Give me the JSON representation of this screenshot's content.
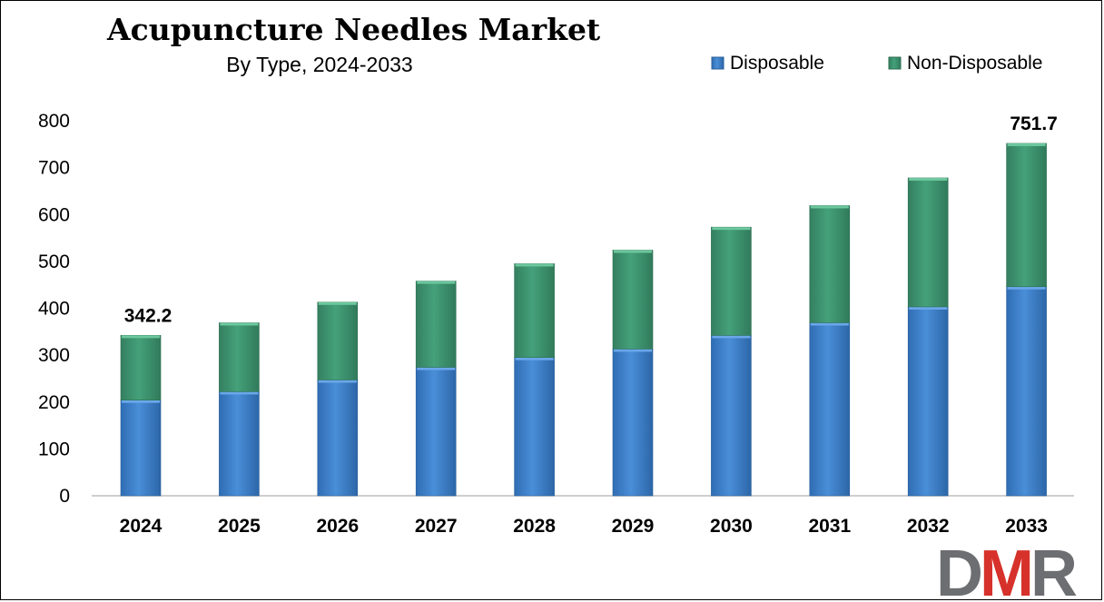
{
  "chart_data": {
    "type": "bar",
    "stacked": true,
    "title": "Acupuncture Needles Market",
    "subtitle": "By Type, 2024-2033",
    "categories": [
      "2024",
      "2025",
      "2026",
      "2027",
      "2028",
      "2029",
      "2030",
      "2031",
      "2032",
      "2033"
    ],
    "series": [
      {
        "name": "Disposable",
        "color": "#3a7dc9",
        "values": [
          204,
          222,
          247,
          274,
          295,
          313,
          342,
          369,
          403,
          446
        ]
      },
      {
        "name": "Non-Disposable",
        "color": "#3d9570",
        "values": [
          138.2,
          147,
          166,
          184,
          200,
          211,
          231,
          250,
          275,
          305.7
        ]
      }
    ],
    "totals": [
      342.2,
      369,
      413,
      458,
      495,
      524,
      573,
      619,
      678,
      751.7
    ],
    "data_labels": [
      {
        "category": "2024",
        "text": "342.2"
      },
      {
        "category": "2033",
        "text": "751.7"
      }
    ],
    "ylim": [
      0,
      800
    ],
    "yticks": [
      0,
      100,
      200,
      300,
      400,
      500,
      600,
      700,
      800
    ],
    "legend_position": "top-right",
    "grid": false
  },
  "logo": {
    "text": "DMR",
    "colors": [
      "#6d6e71",
      "#d6322b",
      "#6d6e71"
    ]
  }
}
